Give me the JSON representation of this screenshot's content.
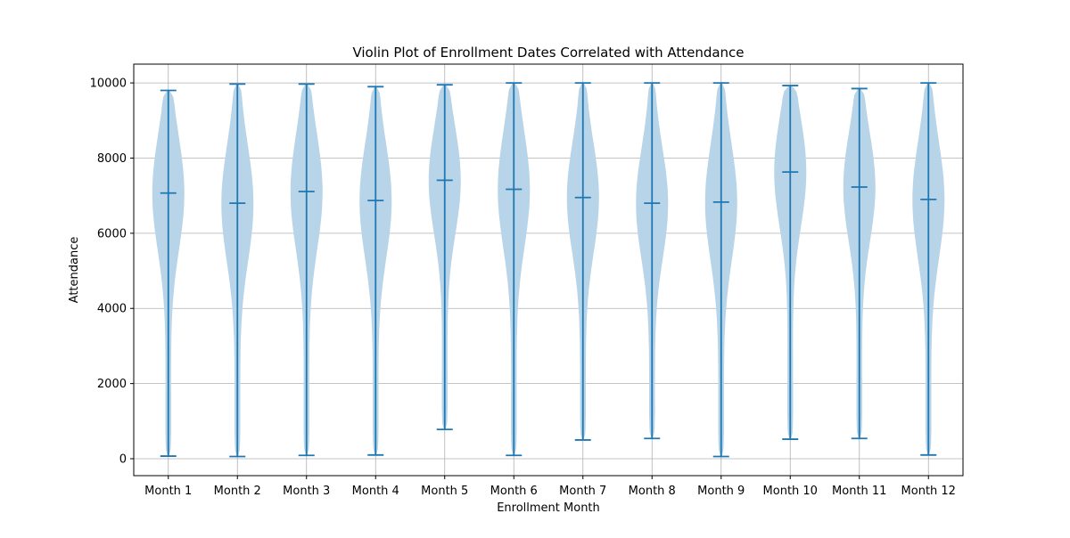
{
  "chart_data": {
    "type": "violin",
    "title": "Violin Plot of Enrollment Dates Correlated with Attendance",
    "xlabel": "Enrollment Month",
    "ylabel": "Attendance",
    "ylim": [
      -450,
      10500
    ],
    "yticks": [
      0,
      2000,
      4000,
      6000,
      8000,
      10000
    ],
    "grid": true,
    "violin_color": "#b8d4e8",
    "line_color": "#1f77b4",
    "categories": [
      "Month 1",
      "Month 2",
      "Month 3",
      "Month 4",
      "Month 5",
      "Month 6",
      "Month 7",
      "Month 8",
      "Month 9",
      "Month 10",
      "Month 11",
      "Month 12"
    ],
    "series": [
      {
        "min": 70,
        "max": 9800,
        "median": 7070
      },
      {
        "min": 60,
        "max": 9970,
        "median": 6800
      },
      {
        "min": 90,
        "max": 9970,
        "median": 7110
      },
      {
        "min": 100,
        "max": 9900,
        "median": 6870
      },
      {
        "min": 780,
        "max": 9950,
        "median": 7410
      },
      {
        "min": 90,
        "max": 10000,
        "median": 7170
      },
      {
        "min": 500,
        "max": 10000,
        "median": 6950
      },
      {
        "min": 540,
        "max": 10000,
        "median": 6800
      },
      {
        "min": 60,
        "max": 10000,
        "median": 6830
      },
      {
        "min": 520,
        "max": 9930,
        "median": 7630
      },
      {
        "min": 540,
        "max": 9850,
        "median": 7230
      },
      {
        "min": 100,
        "max": 10000,
        "median": 6900
      }
    ]
  }
}
